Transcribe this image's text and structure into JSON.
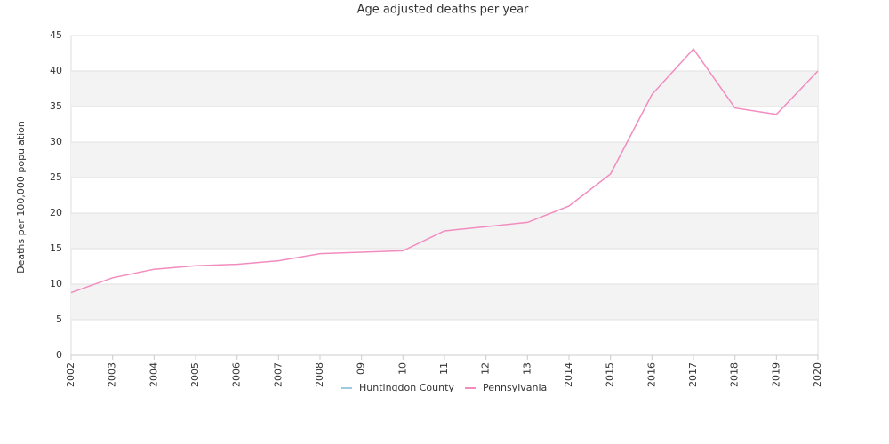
{
  "chart_data": {
    "type": "line",
    "title": "Age adjusted deaths per year",
    "y_label": "Deaths per 100,000 population",
    "categories": [
      "2002",
      "2003",
      "2004",
      "2005",
      "2006",
      "2007",
      "2008",
      "09",
      "10",
      "11",
      "12",
      "13",
      "2014",
      "2015",
      "2016",
      "2017",
      "2018",
      "2019",
      "2020"
    ],
    "series": [
      {
        "name": "Huntingdon County",
        "color": "#9ecae1",
        "values": [
          null,
          null,
          null,
          null,
          null,
          null,
          null,
          null,
          null,
          null,
          null,
          null,
          null,
          null,
          null,
          null,
          null,
          null,
          null
        ]
      },
      {
        "name": "Pennsylvania",
        "color": "#f28cbf",
        "values": [
          8.8,
          10.9,
          12.1,
          12.6,
          12.8,
          13.3,
          14.3,
          14.5,
          14.7,
          17.5,
          18.1,
          18.7,
          21.0,
          25.5,
          36.7,
          43.1,
          34.8,
          33.9,
          40.0
        ]
      }
    ],
    "ylim": [
      0,
      45
    ],
    "yticks": [
      0,
      5,
      10,
      15,
      20,
      25,
      30,
      35,
      40,
      45
    ],
    "grid": true,
    "legend": "bottom"
  }
}
